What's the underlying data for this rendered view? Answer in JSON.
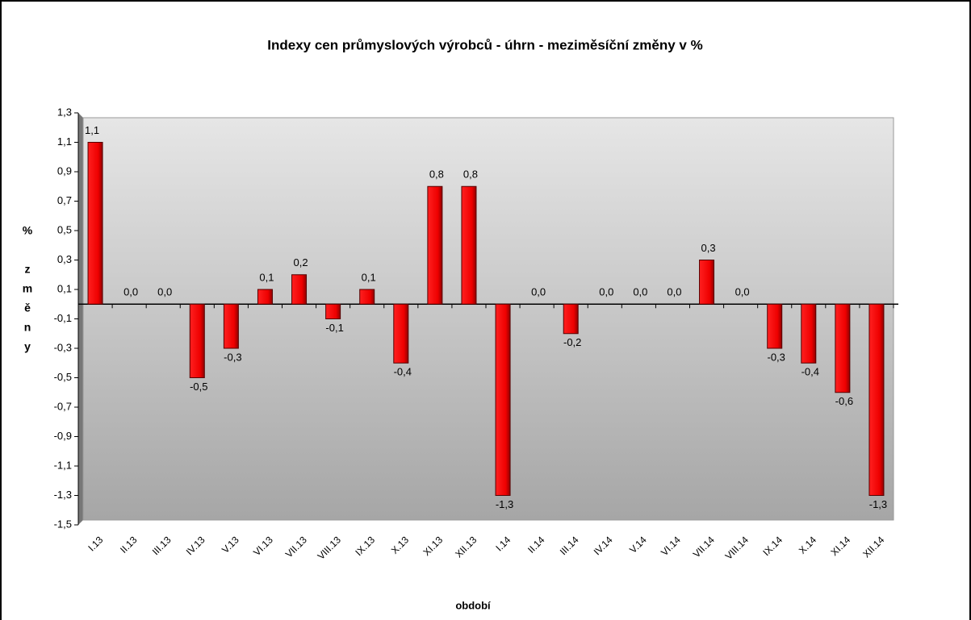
{
  "chart_data": {
    "type": "bar",
    "title": "Indexy cen průmyslových  výrobců - úhrn - meziměsíční  změny v %",
    "x_label": "období",
    "y_label": "% změny",
    "categories": [
      "I.13",
      "II.13",
      "III.13",
      "IV.13",
      "V.13",
      "VI.13",
      "VII.13",
      "VIII.13",
      "IX.13",
      "X.13",
      "XI.13",
      "XII.13",
      "I.14",
      "II.14",
      "III.14",
      "IV.14",
      "V.14",
      "VI.14",
      "VII.14",
      "VIII.14",
      "IX.14",
      "X.14",
      "XI.14",
      "XII.14"
    ],
    "values": [
      1.1,
      0,
      0,
      -0.5,
      -0.3,
      0.1,
      0.2,
      -0.1,
      0.1,
      -0.4,
      0.8,
      0.8,
      -1.3,
      0,
      -0.2,
      0,
      0,
      0,
      0.3,
      0,
      -0.3,
      -0.4,
      -0.6,
      -1.3
    ],
    "value_labels": [
      "1,1",
      "0,0",
      "0,0",
      "-0,5",
      "-0,3",
      "0,1",
      "0,2",
      "-0,1",
      "0,1",
      "-0,4",
      "0,8",
      "0,8",
      "-1,3",
      "0,0",
      "-0,2",
      "0,0",
      "0,0",
      "0,0",
      "0,3",
      "0,0",
      "-0,3",
      "-0,4",
      "-0,6",
      "-1,3"
    ],
    "color": "#ff0000",
    "ylim": [
      -1.5,
      1.3
    ],
    "yticks": [
      {
        "value": -1.5,
        "label": "-1,5"
      },
      {
        "value": -1.3,
        "label": "-1,3"
      },
      {
        "value": -1.1,
        "label": "-1,1"
      },
      {
        "value": -0.9,
        "label": "-0,9"
      },
      {
        "value": -0.7,
        "label": "-0,7"
      },
      {
        "value": -0.5,
        "label": "-0,5"
      },
      {
        "value": -0.3,
        "label": "-0,3"
      },
      {
        "value": -0.1,
        "label": "-0,1"
      },
      {
        "value": 0.1,
        "label": "0,1"
      },
      {
        "value": 0.3,
        "label": "0,3"
      },
      {
        "value": 0.5,
        "label": "0,5"
      },
      {
        "value": 0.7,
        "label": "0,7"
      },
      {
        "value": 0.9,
        "label": "0,9"
      },
      {
        "value": 1.1,
        "label": "1,1"
      },
      {
        "value": 1.3,
        "label": "1,3"
      }
    ]
  }
}
